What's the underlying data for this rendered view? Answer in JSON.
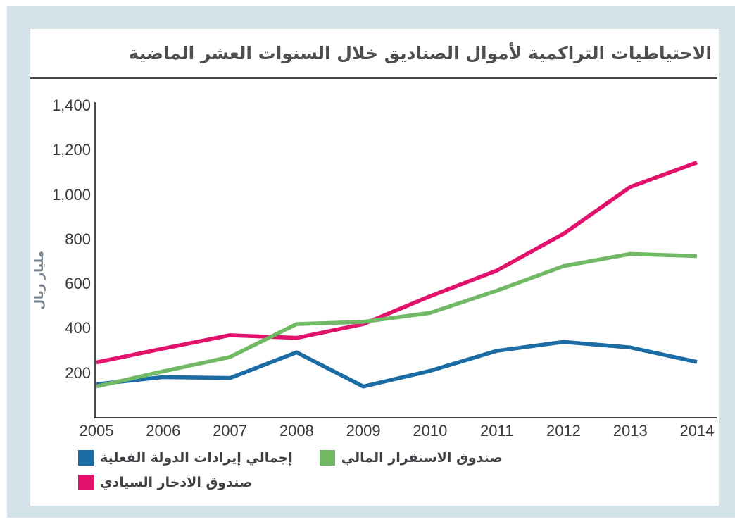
{
  "page": {
    "title": "الاحتياطيات التراكمية لأموال الصناديق خلال السنوات العشر الماضية"
  },
  "colors": {
    "panel_background": "#d4e2ea",
    "card_background": "#ffffff",
    "axis_line": "#2b2b2d",
    "tick_text": "#39393b",
    "title_text": "#4e4e52",
    "unit_text": "#76828e"
  },
  "chart_data": {
    "type": "line",
    "title": "الاحتياطيات التراكمية لأموال الصناديق خلال السنوات العشر الماضية",
    "xlabel": "",
    "ylabel": "مليار ريال",
    "x": [
      2005,
      2006,
      2007,
      2008,
      2009,
      2010,
      2011,
      2012,
      2013,
      2014
    ],
    "ylim": [
      0,
      1400
    ],
    "y_ticks": [
      {
        "value": 200,
        "label": "200"
      },
      {
        "value": 400,
        "label": "400"
      },
      {
        "value": 600,
        "label": "600"
      },
      {
        "value": 800,
        "label": "800"
      },
      {
        "value": 1000,
        "label": "1,000"
      },
      {
        "value": 1200,
        "label": "1,200"
      },
      {
        "value": 1400,
        "label": "1,400"
      }
    ],
    "grid": false,
    "legend_position": "bottom",
    "series": [
      {
        "name": "إجمالي إيرادات الدولة الفعلية",
        "color": "#1b6ba5",
        "values": [
          150,
          182,
          178,
          293,
          140,
          210,
          300,
          340,
          315,
          250
        ]
      },
      {
        "name": "صندوق الاستقرار المالي",
        "color": "#72b965",
        "values": [
          140,
          208,
          272,
          420,
          430,
          470,
          570,
          680,
          735,
          725
        ]
      },
      {
        "name": "صندوق الادخار السيادي",
        "color": "#e2116b",
        "values": [
          248,
          310,
          370,
          358,
          420,
          545,
          660,
          825,
          1035,
          1145
        ]
      }
    ]
  }
}
